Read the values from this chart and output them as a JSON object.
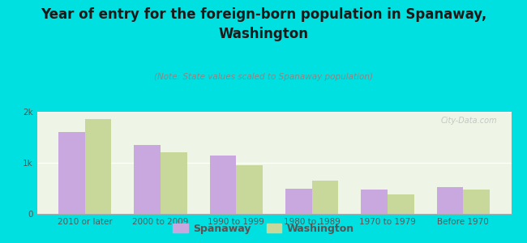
{
  "title": "Year of entry for the foreign-born population in Spanaway,\nWashington",
  "subtitle": "(Note: State values scaled to Spanaway population)",
  "categories": [
    "2010 or later",
    "2000 to 2009",
    "1990 to 1999",
    "1980 to 1989",
    "1970 to 1979",
    "Before 1970"
  ],
  "spanaway_values": [
    1600,
    1350,
    1150,
    500,
    480,
    520
  ],
  "washington_values": [
    1850,
    1200,
    950,
    650,
    380,
    480
  ],
  "spanaway_color": "#c9a8e0",
  "washington_color": "#c8d89a",
  "background_color": "#00e0e0",
  "plot_bg_color": "#eef5e6",
  "ylim": [
    0,
    2000
  ],
  "yticks": [
    0,
    1000,
    2000
  ],
  "ytick_labels": [
    "0",
    "1k",
    "2k"
  ],
  "legend_spanaway": "Spanaway",
  "legend_washington": "Washington",
  "watermark": "City-Data.com",
  "bar_width": 0.35,
  "title_fontsize": 12,
  "subtitle_fontsize": 7.5,
  "tick_fontsize": 7.5,
  "legend_fontsize": 9
}
